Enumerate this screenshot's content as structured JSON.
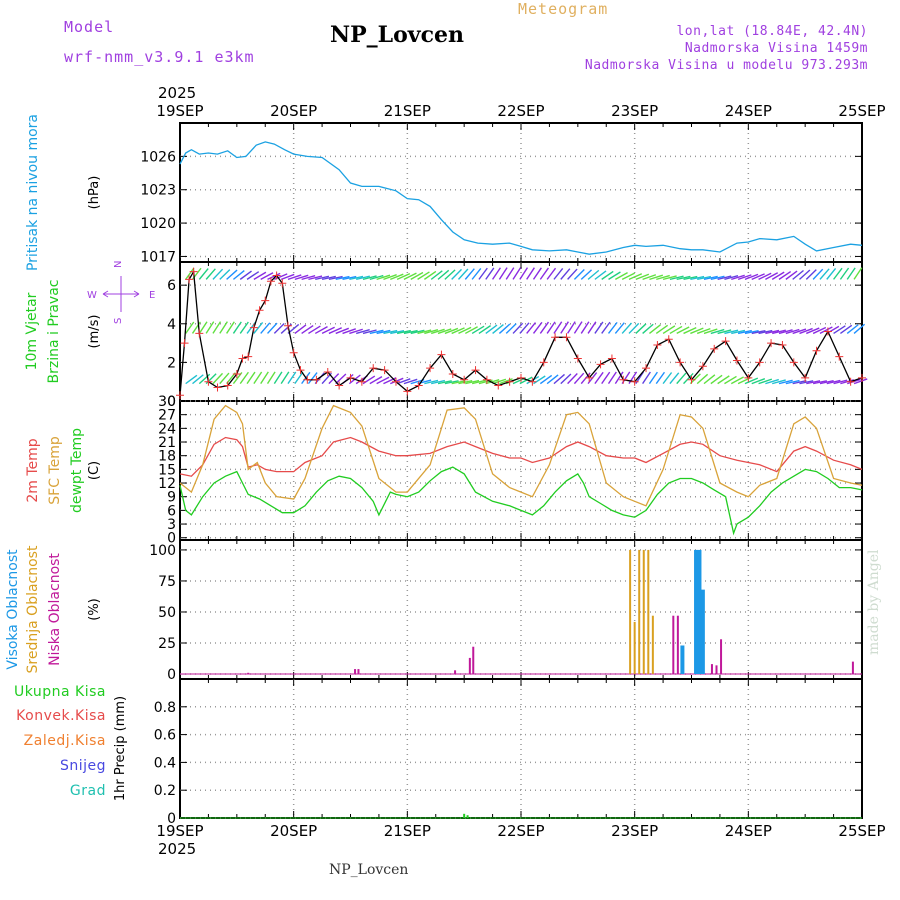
{
  "header": {
    "model_label": "Model",
    "model_name": "wrf-nmm_v3.9.1  e3km",
    "station": "NP_Lovcen",
    "product": "Meteogram",
    "coords": "lon,lat (18.84E, 42.4N)",
    "altitude": "Nadmorska Visina 1459m",
    "model_altitude": "Nadmorska Visina u modelu 973.293m"
  },
  "footer": {
    "station": "NP_Lovcen",
    "credit": "made by Angel"
  },
  "colors": {
    "pressure": "#1ba1e2",
    "wind_speed": "#000000",
    "wind_marks": "#ee3333",
    "t2m": "#e64b4b",
    "sfc": "#d9a33a",
    "dewpt": "#21cc21",
    "cloud_high": "#1c98e6",
    "cloud_mid": "#d9a020",
    "cloud_low": "#c0189a",
    "precip_total": "#21cc21",
    "precip_conv": "#e64b4b",
    "precip_frz": "#f08030",
    "precip_snow": "#4848e0",
    "precip_grad": "#20c0b0",
    "purple": "#a040e0"
  },
  "chart_data": {
    "x_year": "2025",
    "x_ticks": [
      "19SEP",
      "20SEP",
      "21SEP",
      "22SEP",
      "23SEP",
      "24SEP",
      "25SEP"
    ],
    "x_range_days": [
      0,
      6
    ],
    "panels": [
      {
        "id": "pressure",
        "type": "line",
        "ylabel": "(hPa)",
        "side_labels": [
          "Pritisak na nivou mora"
        ],
        "ylim": [
          1016.5,
          1029
        ],
        "ytick_values": [
          1017,
          1020,
          1023,
          1026
        ],
        "ytick_labels": [
          "1017",
          "1020",
          "1023",
          "1026"
        ],
        "series": [
          {
            "name": "Pritisak na nivou mora",
            "x": [
              0,
              0.05,
              0.1,
              0.17,
              0.25,
              0.33,
              0.42,
              0.5,
              0.58,
              0.67,
              0.75,
              0.83,
              0.92,
              1.0,
              1.12,
              1.25,
              1.4,
              1.5,
              1.6,
              1.75,
              1.9,
              2.0,
              2.1,
              2.2,
              2.3,
              2.4,
              2.5,
              2.62,
              2.75,
              2.9,
              3.0,
              3.1,
              3.25,
              3.4,
              3.5,
              3.6,
              3.75,
              3.9,
              4.0,
              4.1,
              4.25,
              4.4,
              4.5,
              4.6,
              4.75,
              4.9,
              5.0,
              5.1,
              5.25,
              5.4,
              5.5,
              5.6,
              5.75,
              5.9,
              6.0
            ],
            "y": [
              1025.3,
              1026.3,
              1026.6,
              1026.2,
              1026.3,
              1026.2,
              1026.5,
              1025.9,
              1026.0,
              1027.0,
              1027.3,
              1027.1,
              1026.6,
              1026.2,
              1026.0,
              1025.9,
              1024.8,
              1023.6,
              1023.3,
              1023.3,
              1022.9,
              1022.2,
              1022.1,
              1021.5,
              1020.3,
              1019.2,
              1018.5,
              1018.2,
              1018.1,
              1018.2,
              1017.9,
              1017.6,
              1017.5,
              1017.6,
              1017.4,
              1017.2,
              1017.4,
              1017.8,
              1018.0,
              1017.9,
              1018.0,
              1017.7,
              1017.6,
              1017.6,
              1017.4,
              1018.2,
              1018.3,
              1018.6,
              1018.5,
              1018.8,
              1018.1,
              1017.5,
              1017.8,
              1018.1,
              1018.0
            ]
          }
        ]
      },
      {
        "id": "wind",
        "type": "line",
        "ylabel": "(m/s)",
        "side_labels": [
          "10m Vjetar",
          "Brzina i Pravac"
        ],
        "compass": [
          "W",
          "E",
          "N",
          "S"
        ],
        "ylim": [
          0,
          7.2
        ],
        "ytick_values": [
          0,
          2,
          4,
          6
        ],
        "ytick_labels": [
          "0",
          "2",
          "4",
          "6"
        ],
        "series": [
          {
            "name": "Brzina vjetra",
            "x": [
              0,
              0.04,
              0.08,
              0.12,
              0.17,
              0.25,
              0.33,
              0.42,
              0.5,
              0.55,
              0.6,
              0.65,
              0.7,
              0.75,
              0.8,
              0.85,
              0.9,
              0.95,
              1.0,
              1.06,
              1.12,
              1.2,
              1.3,
              1.4,
              1.5,
              1.6,
              1.7,
              1.8,
              1.9,
              2.0,
              2.1,
              2.2,
              2.3,
              2.4,
              2.5,
              2.6,
              2.7,
              2.8,
              2.9,
              3.0,
              3.1,
              3.2,
              3.3,
              3.4,
              3.5,
              3.6,
              3.7,
              3.8,
              3.9,
              4.0,
              4.1,
              4.2,
              4.3,
              4.4,
              4.5,
              4.6,
              4.7,
              4.8,
              4.9,
              5.0,
              5.1,
              5.2,
              5.3,
              5.4,
              5.5,
              5.6,
              5.7,
              5.8,
              5.9,
              6.0
            ],
            "y": [
              0.3,
              3.0,
              6.3,
              6.7,
              3.5,
              1.0,
              0.7,
              0.8,
              1.4,
              2.2,
              2.3,
              3.8,
              4.7,
              5.2,
              6.2,
              6.5,
              6.1,
              3.9,
              2.5,
              1.6,
              1.1,
              1.1,
              1.5,
              0.8,
              1.2,
              1.0,
              1.7,
              1.6,
              1.0,
              0.5,
              0.8,
              1.7,
              2.4,
              1.4,
              1.1,
              1.6,
              1.1,
              0.8,
              1.0,
              1.2,
              1.0,
              2.0,
              3.3,
              3.3,
              2.2,
              1.2,
              1.9,
              2.2,
              1.1,
              1.0,
              1.7,
              2.9,
              3.2,
              2.0,
              1.1,
              1.8,
              2.7,
              3.1,
              2.1,
              1.2,
              2.0,
              3.0,
              2.9,
              2.0,
              1.2,
              2.6,
              3.6,
              2.3,
              1.0,
              1.2
            ]
          }
        ],
        "vector_rows_ms": [
          0.9,
          3.5,
          6.3
        ]
      },
      {
        "id": "temperature",
        "type": "line",
        "ylabel": "(C)",
        "side_labels": [
          "2m Temp",
          "SFC Temp",
          "dewpt Temp"
        ],
        "ylim": [
          -0.5,
          30
        ],
        "ytick_values": [
          0,
          3,
          6,
          9,
          12,
          15,
          18,
          21,
          24,
          27,
          30
        ],
        "ytick_labels": [
          "0",
          "3",
          "6",
          "9",
          "12",
          "15",
          "18",
          "21",
          "24",
          "27",
          "30"
        ],
        "series": [
          {
            "name": "2m Temp",
            "x": [
              0,
              0.1,
              0.2,
              0.3,
              0.4,
              0.5,
              0.55,
              0.6,
              0.68,
              0.75,
              0.85,
              1.0,
              1.1,
              1.25,
              1.35,
              1.5,
              1.6,
              1.75,
              1.9,
              2.0,
              2.2,
              2.35,
              2.5,
              2.6,
              2.75,
              2.9,
              3.0,
              3.1,
              3.25,
              3.4,
              3.5,
              3.6,
              3.75,
              3.9,
              4.0,
              4.1,
              4.25,
              4.4,
              4.5,
              4.6,
              4.75,
              4.9,
              5.0,
              5.1,
              5.25,
              5.4,
              5.5,
              5.6,
              5.75,
              5.9,
              6.0
            ],
            "y": [
              14.0,
              13.5,
              16.0,
              20.5,
              22.0,
              21.5,
              20.0,
              15.5,
              16.0,
              15.0,
              14.5,
              14.5,
              16.5,
              18.0,
              21.0,
              22.0,
              21.0,
              19.0,
              18.0,
              18.0,
              18.5,
              20.0,
              21.0,
              20.0,
              18.5,
              17.5,
              17.5,
              16.5,
              17.5,
              20.0,
              21.0,
              20.0,
              18.0,
              17.5,
              17.5,
              16.5,
              18.5,
              20.5,
              21.0,
              20.5,
              18.0,
              17.0,
              16.5,
              16.0,
              14.5,
              19.0,
              20.0,
              19.0,
              17.0,
              16.0,
              15.0
            ]
          },
          {
            "name": "SFC Temp",
            "x": [
              0,
              0.1,
              0.2,
              0.3,
              0.4,
              0.5,
              0.55,
              0.6,
              0.68,
              0.75,
              0.85,
              1.0,
              1.1,
              1.25,
              1.35,
              1.5,
              1.6,
              1.75,
              1.9,
              2.0,
              2.2,
              2.35,
              2.5,
              2.6,
              2.75,
              2.9,
              3.0,
              3.1,
              3.25,
              3.4,
              3.5,
              3.6,
              3.75,
              3.9,
              4.0,
              4.1,
              4.25,
              4.4,
              4.5,
              4.6,
              4.75,
              4.9,
              5.0,
              5.1,
              5.25,
              5.4,
              5.5,
              5.6,
              5.75,
              5.9,
              6.0
            ],
            "y": [
              12.0,
              10.0,
              16.0,
              26.0,
              29.0,
              27.5,
              25.0,
              15.0,
              16.5,
              12.0,
              9.0,
              8.5,
              13.0,
              24.0,
              29.0,
              27.5,
              24.5,
              13.0,
              10.0,
              10.0,
              16.0,
              28.0,
              28.5,
              26.0,
              14.0,
              11.0,
              10.0,
              9.0,
              16.0,
              27.0,
              27.5,
              25.0,
              12.0,
              9.0,
              8.0,
              7.0,
              15.0,
              27.0,
              26.5,
              24.0,
              12.0,
              10.0,
              9.0,
              11.5,
              13.0,
              25.0,
              26.5,
              24.0,
              13.0,
              12.0,
              11.5
            ]
          },
          {
            "name": "dewpt Temp",
            "x": [
              0,
              0.05,
              0.1,
              0.2,
              0.3,
              0.4,
              0.5,
              0.55,
              0.6,
              0.7,
              0.8,
              0.9,
              1.0,
              1.1,
              1.2,
              1.3,
              1.4,
              1.5,
              1.6,
              1.7,
              1.75,
              1.85,
              1.9,
              2.0,
              2.1,
              2.2,
              2.3,
              2.4,
              2.5,
              2.6,
              2.75,
              2.9,
              3.0,
              3.1,
              3.2,
              3.3,
              3.4,
              3.5,
              3.55,
              3.6,
              3.7,
              3.8,
              3.9,
              4.0,
              4.1,
              4.2,
              4.3,
              4.4,
              4.5,
              4.6,
              4.7,
              4.8,
              4.87,
              4.9,
              5.0,
              5.1,
              5.2,
              5.3,
              5.4,
              5.5,
              5.6,
              5.7,
              5.8,
              5.9,
              6.0
            ],
            "y": [
              11.5,
              6.0,
              5.0,
              9.0,
              12.0,
              13.5,
              14.5,
              12.0,
              9.5,
              8.5,
              7.0,
              5.5,
              5.5,
              7.0,
              10.0,
              12.5,
              13.5,
              13.0,
              11.0,
              8.0,
              5.0,
              10.0,
              9.5,
              9.0,
              10.0,
              12.5,
              14.5,
              15.5,
              14.0,
              10.0,
              8.0,
              7.0,
              6.0,
              5.0,
              7.0,
              10.0,
              12.5,
              14.0,
              12.0,
              9.0,
              7.5,
              6.0,
              5.0,
              4.5,
              6.0,
              9.5,
              12.0,
              13.0,
              13.0,
              12.0,
              10.5,
              9.0,
              1.0,
              3.0,
              4.5,
              7.0,
              10.0,
              12.0,
              13.5,
              15.0,
              14.5,
              13.0,
              11.0,
              11.0,
              10.5
            ]
          }
        ]
      },
      {
        "id": "clouds",
        "type": "bar",
        "ylabel": "(%)",
        "side_labels": [
          "Visoka Oblacnost",
          "Srednja Oblacnost",
          "Niska Oblacnost"
        ],
        "ylim": [
          -4,
          108
        ],
        "ytick_values": [
          0,
          25,
          50,
          75,
          100
        ],
        "ytick_labels": [
          "0",
          "25",
          "50",
          "75",
          "100"
        ],
        "series": [
          {
            "name": "Visoka Oblacnost",
            "x": [
              4.42,
              4.54,
              4.57,
              4.6
            ],
            "values": [
              23,
              100,
              100,
              68
            ]
          },
          {
            "name": "Srednja Oblacnost",
            "x": [
              3.96,
              4.0,
              4.04,
              4.08,
              4.12,
              4.16
            ],
            "values": [
              100,
              42,
              100,
              100,
              100,
              47
            ]
          },
          {
            "name": "Niska Oblacnost",
            "x": [
              0.6,
              1.54,
              1.57,
              2.42,
              2.55,
              2.58,
              4.34,
              4.38,
              4.68,
              4.72,
              4.76,
              5.92
            ],
            "values": [
              1,
              4,
              4,
              3,
              13,
              22,
              47,
              47,
              8,
              7,
              28,
              10
            ]
          }
        ]
      },
      {
        "id": "precip",
        "type": "bar",
        "ylabel": "1hr Precip (mm)",
        "side_labels": [
          "Ukupna Kisa",
          "Konvek.Kisa",
          "Zaledj.Kisa",
          "Snijeg",
          "Grad"
        ],
        "ylim": [
          0,
          1.0
        ],
        "ytick_values": [
          0,
          0.2,
          0.4,
          0.6,
          0.8
        ],
        "ytick_labels": [
          "0",
          "0.2",
          "0.4",
          "0.6",
          "0.8"
        ],
        "series": [
          {
            "name": "Ukupna Kisa",
            "x": [
              2.5,
              2.53
            ],
            "values": [
              0.03,
              0.02
            ]
          },
          {
            "name": "Konvek.Kisa",
            "x": [],
            "values": []
          },
          {
            "name": "Zaledj.Kisa",
            "x": [],
            "values": []
          },
          {
            "name": "Snijeg",
            "x": [],
            "values": []
          },
          {
            "name": "Grad",
            "x": [],
            "values": []
          }
        ]
      }
    ]
  }
}
